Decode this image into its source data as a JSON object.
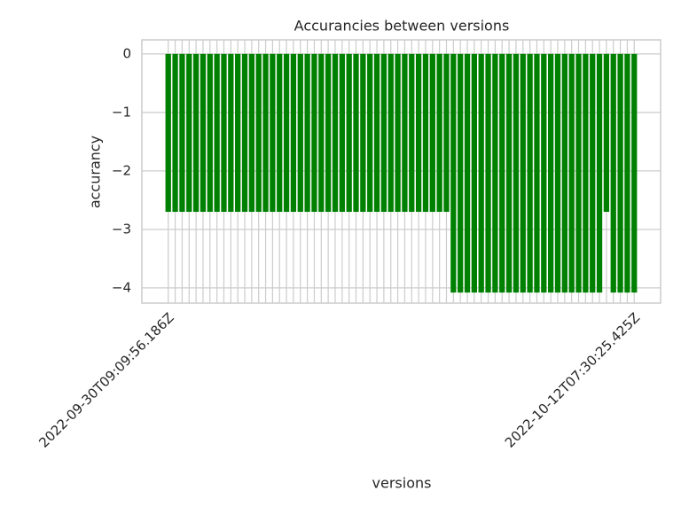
{
  "chart_data": {
    "type": "bar",
    "title": "Accurancies between versions",
    "xlabel": "versions",
    "ylabel": "accurancy",
    "color": "#008000",
    "grid": true,
    "categories": [
      "2022-09-30T09:09:56.186Z",
      null,
      null,
      null,
      null,
      null,
      null,
      null,
      null,
      null,
      null,
      null,
      null,
      null,
      null,
      null,
      null,
      null,
      null,
      null,
      null,
      null,
      null,
      null,
      null,
      null,
      null,
      null,
      null,
      null,
      null,
      null,
      null,
      null,
      null,
      null,
      null,
      null,
      null,
      null,
      null,
      null,
      null,
      null,
      null,
      null,
      null,
      null,
      null,
      null,
      null,
      null,
      null,
      null,
      null,
      null,
      null,
      null,
      null,
      null,
      null,
      null,
      null,
      null,
      null,
      null,
      null,
      "2022-10-12T07:30:25.425Z"
    ],
    "values": [
      -2.7,
      -2.7,
      -2.7,
      -2.7,
      -2.7,
      -2.7,
      -2.7,
      -2.7,
      -2.7,
      -2.7,
      -2.7,
      -2.7,
      -2.7,
      -2.7,
      -2.7,
      -2.7,
      -2.7,
      -2.7,
      -2.7,
      -2.7,
      -2.7,
      -2.7,
      -2.7,
      -2.7,
      -2.7,
      -2.7,
      -2.7,
      -2.7,
      -2.7,
      -2.7,
      -2.7,
      -2.7,
      -2.7,
      -2.7,
      -2.7,
      -2.7,
      -2.7,
      -2.7,
      -2.7,
      -2.7,
      -2.7,
      -4.08,
      -4.08,
      -4.08,
      -4.08,
      -4.08,
      -4.08,
      -4.08,
      -4.08,
      -4.08,
      -4.08,
      -4.08,
      -4.08,
      -4.08,
      -4.08,
      -4.08,
      -4.08,
      -4.08,
      -4.08,
      -4.08,
      -4.08,
      -4.08,
      -4.08,
      -2.7,
      -4.08,
      -4.08,
      -4.08,
      -4.08
    ],
    "ylim": [
      -4.26,
      0.24
    ],
    "yticks": [
      0,
      {
        "value": -1,
        "label": "−1"
      },
      {
        "value": -2,
        "label": "−2"
      },
      {
        "value": -3,
        "label": "−3"
      },
      {
        "value": -4,
        "label": "−4"
      }
    ]
  }
}
